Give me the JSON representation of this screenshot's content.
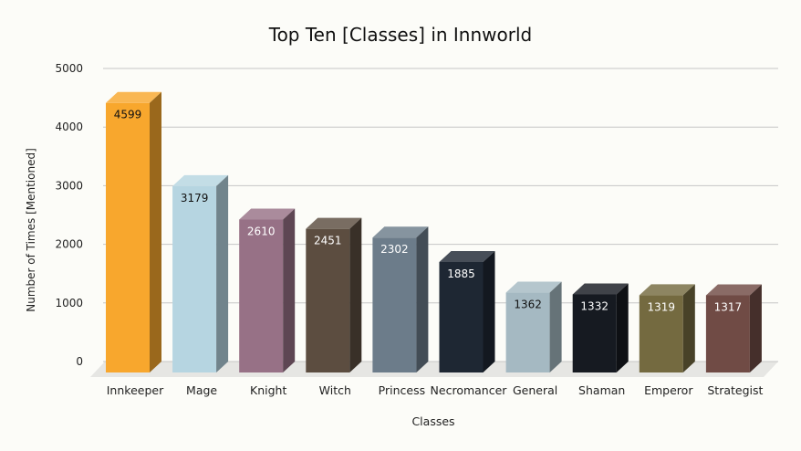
{
  "chart_data": {
    "type": "bar",
    "title": "Top Ten [Classes] in Innworld",
    "xlabel": "Classes",
    "ylabel": "Number of Times [Mentioned]",
    "ylim": [
      0,
      5000
    ],
    "yticks": [
      0,
      1000,
      2000,
      3000,
      4000,
      5000
    ],
    "grid": true,
    "legend": "none",
    "style": "3d",
    "categories": [
      "Innkeeper",
      "Mage",
      "Knight",
      "Witch",
      "Princess",
      "Necromancer",
      "General",
      "Shaman",
      "Emperor",
      "Strategist"
    ],
    "values": [
      4599,
      3179,
      2610,
      2451,
      2302,
      1885,
      1362,
      1332,
      1319,
      1317
    ],
    "colors": [
      "#f8a72d",
      "#b6d5e1",
      "#977186",
      "#5c4d40",
      "#6c7c8a",
      "#1e2733",
      "#a5b9c2",
      "#161a21",
      "#746a40",
      "#704b45"
    ],
    "label_colors": [
      "#111111",
      "#111111",
      "#ffffff",
      "#ffffff",
      "#ffffff",
      "#ffffff",
      "#111111",
      "#ffffff",
      "#ffffff",
      "#ffffff"
    ]
  }
}
